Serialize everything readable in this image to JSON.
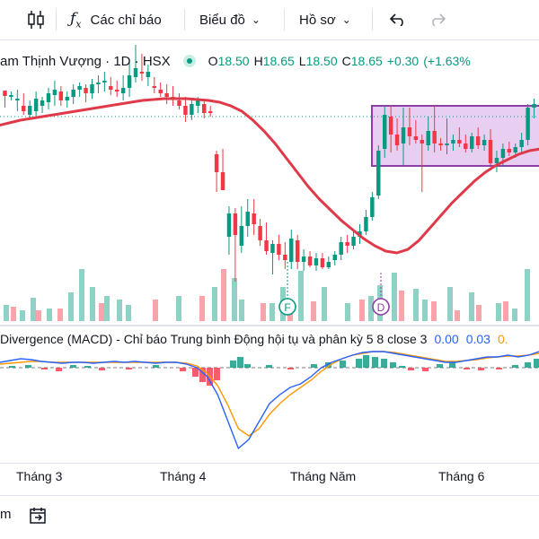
{
  "toolbar": {
    "indicators_label": "Các chỉ báo",
    "chart_type_label": "Biểu đồ",
    "profile_label": "Hồ sơ"
  },
  "legend": {
    "symbol_text": "am Thịnh Vượng · 1D · HSX",
    "o_key": "O",
    "o_val": "18.50",
    "h_key": "H",
    "h_val": "18.65",
    "l_key": "L",
    "l_val": "18.50",
    "c_key": "C",
    "c_val": "18.65",
    "change": "+0.30",
    "change_pct": "(+1.63%"
  },
  "macd": {
    "title": "Divergence (MACD) - Chỉ báo Trung bình Động hội tụ và phân kỳ 5 8 close 3",
    "v1": "0.00",
    "v2": "0.03",
    "v3": "0."
  },
  "xaxis": {
    "labels": [
      "Tháng 3",
      "Tháng 4",
      "Tháng Năm",
      "Tháng 6"
    ]
  },
  "markers": {
    "f": "F",
    "d": "D"
  },
  "bottom": {
    "left_text": "m"
  },
  "colors": {
    "up": "#089981",
    "down": "#f23645",
    "ma": "#e03a4a",
    "box_fill": "#e4c6ef",
    "box_border": "#8e3fa6",
    "macd_line": "#2962ff",
    "signal_line": "#ff9800"
  },
  "chart_data": {
    "type": "candlestick",
    "bars": [
      {
        "o": 101,
        "h": 104,
        "l": 120,
        "c": 107
      },
      {
        "o": 108,
        "h": 102,
        "l": 112,
        "c": 106
      },
      {
        "o": 112,
        "h": 100,
        "l": 124,
        "c": 110
      },
      {
        "o": 118,
        "h": 104,
        "l": 128,
        "c": 124
      },
      {
        "o": 128,
        "h": 112,
        "l": 134,
        "c": 118
      },
      {
        "o": 124,
        "h": 102,
        "l": 132,
        "c": 110
      },
      {
        "o": 118,
        "h": 108,
        "l": 126,
        "c": 112
      },
      {
        "o": 114,
        "h": 98,
        "l": 122,
        "c": 104
      },
      {
        "o": 106,
        "h": 90,
        "l": 118,
        "c": 100
      },
      {
        "o": 102,
        "h": 96,
        "l": 118,
        "c": 112
      },
      {
        "o": 112,
        "h": 102,
        "l": 120,
        "c": 108
      },
      {
        "o": 108,
        "h": 94,
        "l": 116,
        "c": 100
      },
      {
        "o": 100,
        "h": 92,
        "l": 108,
        "c": 96
      },
      {
        "o": 98,
        "h": 94,
        "l": 114,
        "c": 104
      },
      {
        "o": 104,
        "h": 88,
        "l": 110,
        "c": 94
      },
      {
        "o": 94,
        "h": 84,
        "l": 104,
        "c": 92
      },
      {
        "o": 92,
        "h": 80,
        "l": 102,
        "c": 90
      },
      {
        "o": 96,
        "h": 86,
        "l": 106,
        "c": 100
      },
      {
        "o": 100,
        "h": 90,
        "l": 108,
        "c": 102
      },
      {
        "o": 104,
        "h": 84,
        "l": 112,
        "c": 98
      },
      {
        "o": 98,
        "h": 70,
        "l": 108,
        "c": 84
      },
      {
        "o": 86,
        "h": 50,
        "l": 92,
        "c": 76
      },
      {
        "o": 80,
        "h": 60,
        "l": 90,
        "c": 80
      },
      {
        "o": 86,
        "h": 72,
        "l": 96,
        "c": 80
      },
      {
        "o": 96,
        "h": 86,
        "l": 104,
        "c": 98
      },
      {
        "o": 100,
        "h": 92,
        "l": 108,
        "c": 104
      },
      {
        "o": 104,
        "h": 94,
        "l": 116,
        "c": 108
      },
      {
        "o": 108,
        "h": 96,
        "l": 118,
        "c": 110
      },
      {
        "o": 112,
        "h": 104,
        "l": 122,
        "c": 118
      },
      {
        "o": 118,
        "h": 108,
        "l": 136,
        "c": 128
      },
      {
        "o": 128,
        "h": 112,
        "l": 134,
        "c": 116
      },
      {
        "o": 118,
        "h": 108,
        "l": 126,
        "c": 110
      },
      {
        "o": 116,
        "h": 112,
        "l": 132,
        "c": 126
      },
      {
        "o": 124,
        "h": 118,
        "l": 130,
        "c": 124
      },
      {
        "o": 172,
        "h": 168,
        "l": 214,
        "c": 192
      },
      {
        "o": 192,
        "h": 166,
        "l": 212,
        "c": 212
      },
      {
        "o": 264,
        "h": 230,
        "l": 284,
        "c": 238
      },
      {
        "o": 238,
        "h": 232,
        "l": 314,
        "c": 262
      },
      {
        "o": 274,
        "h": 230,
        "l": 282,
        "c": 252
      },
      {
        "o": 252,
        "h": 222,
        "l": 264,
        "c": 236
      },
      {
        "o": 238,
        "h": 222,
        "l": 262,
        "c": 250
      },
      {
        "o": 252,
        "h": 244,
        "l": 274,
        "c": 268
      },
      {
        "o": 268,
        "h": 248,
        "l": 284,
        "c": 280
      },
      {
        "o": 282,
        "h": 268,
        "l": 306,
        "c": 272
      },
      {
        "o": 272,
        "h": 262,
        "l": 290,
        "c": 284
      },
      {
        "o": 284,
        "h": 270,
        "l": 300,
        "c": 290
      },
      {
        "o": 292,
        "h": 256,
        "l": 300,
        "c": 266
      },
      {
        "o": 268,
        "h": 262,
        "l": 300,
        "c": 292
      },
      {
        "o": 292,
        "h": 278,
        "l": 302,
        "c": 286
      },
      {
        "o": 286,
        "h": 280,
        "l": 298,
        "c": 296
      },
      {
        "o": 296,
        "h": 282,
        "l": 302,
        "c": 288
      },
      {
        "o": 288,
        "h": 282,
        "l": 300,
        "c": 298
      },
      {
        "o": 298,
        "h": 286,
        "l": 300,
        "c": 292
      },
      {
        "o": 290,
        "h": 280,
        "l": 296,
        "c": 284
      },
      {
        "o": 284,
        "h": 264,
        "l": 290,
        "c": 270
      },
      {
        "o": 270,
        "h": 262,
        "l": 282,
        "c": 274
      },
      {
        "o": 274,
        "h": 258,
        "l": 278,
        "c": 264
      },
      {
        "o": 264,
        "h": 250,
        "l": 272,
        "c": 258
      },
      {
        "o": 258,
        "h": 234,
        "l": 262,
        "c": 242
      },
      {
        "o": 242,
        "h": 214,
        "l": 246,
        "c": 220
      },
      {
        "o": 218,
        "h": 162,
        "l": 222,
        "c": 168
      },
      {
        "o": 166,
        "h": 118,
        "l": 176,
        "c": 128
      },
      {
        "o": 130,
        "h": 118,
        "l": 170,
        "c": 150
      },
      {
        "o": 150,
        "h": 132,
        "l": 168,
        "c": 162
      },
      {
        "o": 160,
        "h": 120,
        "l": 184,
        "c": 142
      },
      {
        "o": 142,
        "h": 120,
        "l": 162,
        "c": 152
      },
      {
        "o": 152,
        "h": 134,
        "l": 160,
        "c": 156
      },
      {
        "o": 156,
        "h": 150,
        "l": 214,
        "c": 160
      },
      {
        "o": 162,
        "h": 130,
        "l": 168,
        "c": 146
      },
      {
        "o": 146,
        "h": 118,
        "l": 170,
        "c": 160
      },
      {
        "o": 160,
        "h": 154,
        "l": 168,
        "c": 162
      },
      {
        "o": 162,
        "h": 132,
        "l": 172,
        "c": 160
      },
      {
        "o": 160,
        "h": 150,
        "l": 168,
        "c": 156
      },
      {
        "o": 156,
        "h": 142,
        "l": 164,
        "c": 160
      },
      {
        "o": 160,
        "h": 150,
        "l": 170,
        "c": 166
      },
      {
        "o": 166,
        "h": 148,
        "l": 170,
        "c": 152
      },
      {
        "o": 152,
        "h": 142,
        "l": 166,
        "c": 162
      },
      {
        "o": 162,
        "h": 150,
        "l": 168,
        "c": 156
      },
      {
        "o": 156,
        "h": 144,
        "l": 184,
        "c": 182
      },
      {
        "o": 182,
        "h": 168,
        "l": 192,
        "c": 176
      },
      {
        "o": 176,
        "h": 160,
        "l": 186,
        "c": 166
      },
      {
        "o": 166,
        "h": 158,
        "l": 174,
        "c": 170
      },
      {
        "o": 170,
        "h": 160,
        "l": 176,
        "c": 164
      },
      {
        "o": 164,
        "h": 148,
        "l": 170,
        "c": 156
      },
      {
        "o": 156,
        "h": 116,
        "l": 162,
        "c": 120
      },
      {
        "o": 120,
        "h": 110,
        "l": 132,
        "c": 116
      }
    ],
    "ma": [
      140,
      137,
      134,
      132,
      130,
      128,
      126,
      124,
      122,
      120,
      118,
      116,
      114,
      112,
      111,
      110,
      110,
      110,
      111,
      112,
      114,
      118,
      124,
      134,
      146,
      160,
      176,
      192,
      208,
      222,
      234,
      246,
      256,
      266,
      274,
      280,
      282,
      278,
      268,
      254,
      240,
      226,
      214,
      202,
      192,
      184,
      178,
      172,
      168,
      166
    ],
    "macd_line": [
      404,
      402,
      400,
      401,
      403,
      404,
      405,
      404,
      404,
      405,
      404,
      403,
      404,
      403,
      404,
      405,
      404,
      404,
      406,
      410,
      420,
      440,
      470,
      500,
      490,
      470,
      450,
      440,
      432,
      428,
      420,
      410,
      404,
      400,
      396,
      393,
      392,
      392,
      394,
      396,
      398,
      400,
      402,
      404,
      404,
      402,
      400,
      398,
      398,
      396,
      398,
      396,
      392
    ],
    "signal_line": [
      406,
      405,
      404,
      403,
      403,
      404,
      404,
      404,
      404,
      404,
      404,
      404,
      404,
      404,
      404,
      404,
      404,
      404,
      405,
      408,
      416,
      430,
      452,
      478,
      486,
      478,
      462,
      450,
      440,
      432,
      424,
      414,
      406,
      400,
      396,
      394,
      392,
      392,
      393,
      395,
      397,
      399,
      401,
      403,
      403,
      402,
      401,
      399,
      398,
      397,
      397,
      396,
      394
    ],
    "volume_up": [
      [
        4,
        340
      ],
      [
        22,
        346
      ],
      [
        34,
        332
      ],
      [
        52,
        344
      ],
      [
        76,
        326
      ],
      [
        88,
        300
      ],
      [
        100,
        320
      ],
      [
        116,
        330
      ],
      [
        130,
        334
      ],
      [
        140,
        340
      ],
      [
        196,
        330
      ],
      [
        236,
        320
      ],
      [
        258,
        310
      ],
      [
        266,
        334
      ],
      [
        300,
        338
      ],
      [
        312,
        320
      ],
      [
        332,
        302
      ],
      [
        358,
        320
      ],
      [
        384,
        338
      ],
      [
        410,
        330
      ],
      [
        420,
        318
      ],
      [
        436,
        304
      ],
      [
        460,
        322
      ],
      [
        470,
        334
      ],
      [
        498,
        320
      ],
      [
        522,
        326
      ],
      [
        552,
        338
      ],
      [
        570,
        344
      ],
      [
        584,
        300
      ]
    ],
    "volume_down": [
      [
        12,
        342
      ],
      [
        40,
        346
      ],
      [
        64,
        344
      ],
      [
        110,
        338
      ],
      [
        170,
        334
      ],
      [
        222,
        330
      ],
      [
        246,
        300
      ],
      [
        290,
        338
      ],
      [
        320,
        348
      ],
      [
        346,
        336
      ],
      [
        400,
        334
      ],
      [
        444,
        324
      ],
      [
        480,
        336
      ],
      [
        506,
        346
      ],
      [
        530,
        340
      ],
      [
        560,
        336
      ]
    ],
    "macd_hist": [
      [
        10,
        2
      ],
      [
        28,
        3
      ],
      [
        46,
        -2
      ],
      [
        62,
        -4
      ],
      [
        78,
        3
      ],
      [
        94,
        2
      ],
      [
        110,
        -3
      ],
      [
        140,
        -2
      ],
      [
        170,
        3
      ],
      [
        200,
        -4
      ],
      [
        214,
        -10
      ],
      [
        222,
        -16
      ],
      [
        230,
        -20
      ],
      [
        238,
        -14
      ],
      [
        256,
        8
      ],
      [
        264,
        12
      ],
      [
        272,
        4
      ],
      [
        296,
        3
      ],
      [
        320,
        -2
      ],
      [
        346,
        4
      ],
      [
        362,
        6
      ],
      [
        378,
        8
      ],
      [
        396,
        10
      ],
      [
        404,
        14
      ],
      [
        414,
        12
      ],
      [
        424,
        10
      ],
      [
        434,
        6
      ],
      [
        444,
        2
      ],
      [
        454,
        -3
      ],
      [
        470,
        -4
      ],
      [
        486,
        4
      ],
      [
        500,
        6
      ],
      [
        516,
        -2
      ],
      [
        532,
        -3
      ],
      [
        552,
        -2
      ],
      [
        570,
        3
      ],
      [
        584,
        6
      ],
      [
        594,
        10
      ]
    ]
  }
}
